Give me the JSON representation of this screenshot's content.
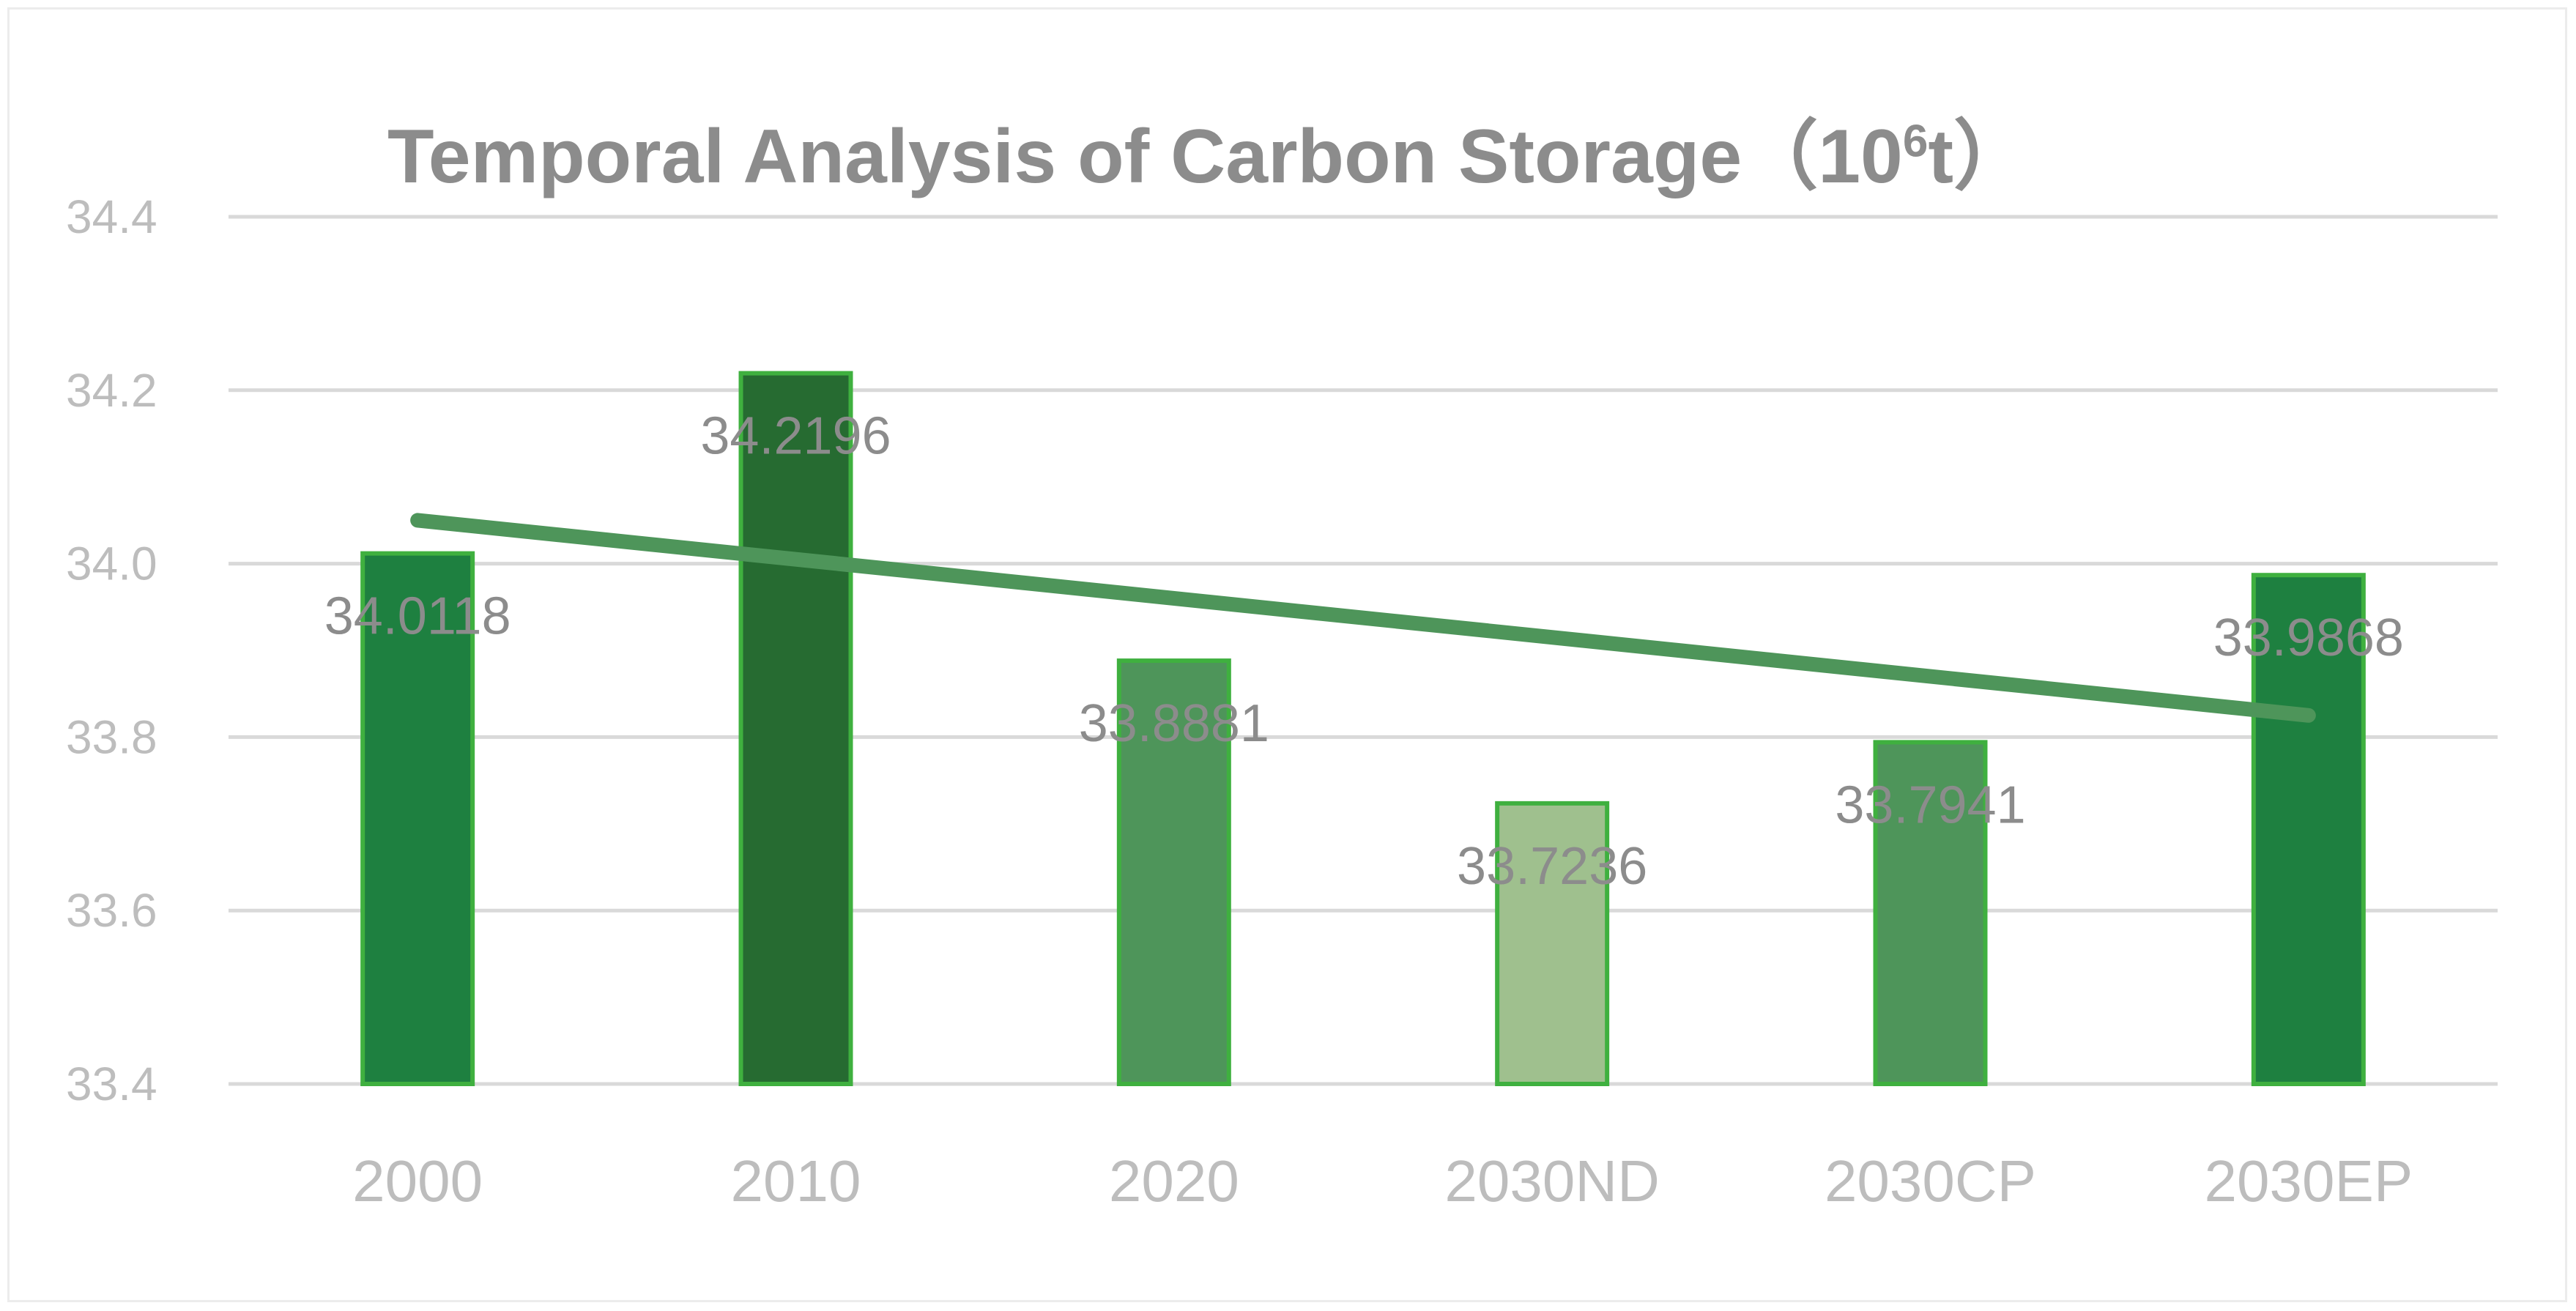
{
  "chart_data": {
    "type": "bar",
    "title": "Temporal Analysis of Carbon Storage",
    "title_unit_open": "（10",
    "title_unit_sup": "6",
    "title_unit_close": "t）",
    "categories": [
      "2000",
      "2010",
      "2020",
      "2030ND",
      "2030CP",
      "2030EP"
    ],
    "values": [
      34.0118,
      34.2196,
      33.8881,
      33.7236,
      33.7941,
      33.9868
    ],
    "data_labels": [
      "34.0118",
      "34.2196",
      "33.8881",
      "33.7236",
      "33.7941",
      "33.9868"
    ],
    "yticks": [
      "33.4",
      "33.6",
      "33.8",
      "34.0",
      "34.2",
      "34.4"
    ],
    "ylim": [
      33.4,
      34.4
    ],
    "xlabel": "",
    "ylabel": "",
    "grid": true,
    "legend": "none",
    "trendline": {
      "type": "linear",
      "start": 34.05,
      "end": 33.825
    },
    "colors": {
      "bars": [
        "#1e8040",
        "#266b31",
        "#4e955a",
        "#9fc08e",
        "#4e955a",
        "#1e8040"
      ],
      "bar_border": "#3fb03f",
      "trendline": "#4e955a",
      "grid": "#d9d9d9",
      "axis_text": "#bdbdbd",
      "label_text": "#8c8c8c"
    }
  }
}
